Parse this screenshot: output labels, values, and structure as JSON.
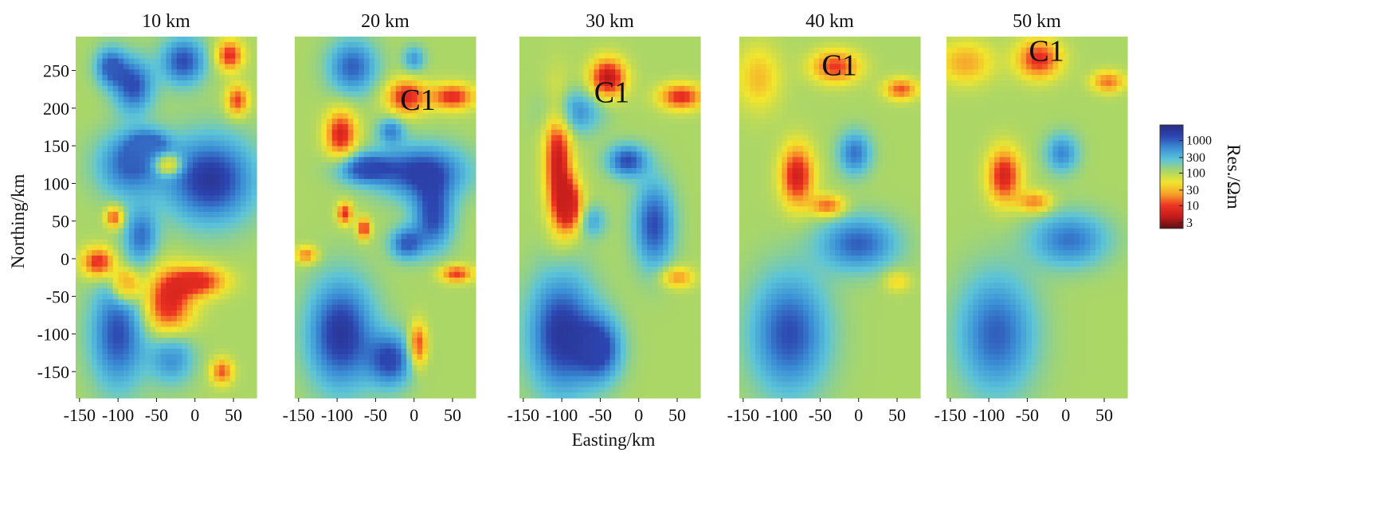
{
  "chart_data": {
    "type": "heatmap",
    "panels": [
      {
        "title": "10 km",
        "annotation": ""
      },
      {
        "title": "20 km",
        "annotation": "C1",
        "annotation_x": 5,
        "annotation_y": 207
      },
      {
        "title": "30 km",
        "annotation": "C1",
        "annotation_x": -35,
        "annotation_y": 217
      },
      {
        "title": "40 km",
        "annotation": "C1",
        "annotation_x": -25,
        "annotation_y": 253
      },
      {
        "title": "50 km",
        "annotation": "C1",
        "annotation_x": -25,
        "annotation_y": 272
      }
    ],
    "x_ticks": [
      "-150",
      "-100",
      "-50",
      "0",
      "50"
    ],
    "x_tick_values": [
      -150,
      -100,
      -50,
      0,
      50
    ],
    "y_ticks": [
      "250",
      "200",
      "150",
      "100",
      "50",
      "0",
      "-50",
      "-100",
      "-150"
    ],
    "y_tick_values": [
      250,
      200,
      150,
      100,
      50,
      0,
      -50,
      -100,
      -150
    ],
    "xlabel": "Easting/km",
    "ylabel": "Northing/km",
    "xlim": [
      -155,
      80
    ],
    "ylim": [
      -185,
      295
    ],
    "colorbar": {
      "label": "Res./Ωm",
      "ticks": [
        "1000",
        "300",
        "100",
        "30",
        "10",
        "3"
      ],
      "tick_values": [
        1000,
        300,
        100,
        30,
        10,
        3
      ],
      "range": [
        2,
        3000
      ],
      "scale": "log",
      "colors": [
        "#5a0f12",
        "#c21b1b",
        "#ee3322",
        "#f7a22a",
        "#f2e52d",
        "#a8d66a",
        "#5cc4d8",
        "#3b8fd6",
        "#2c45b0",
        "#2a2b84"
      ]
    },
    "features": [
      [
        {
          "x": -15,
          "y": 262,
          "sx": 20,
          "sy": 22,
          "v": 3.1
        },
        {
          "x": -80,
          "y": 230,
          "sx": 18,
          "sy": 25,
          "v": 3.1
        },
        {
          "x": -110,
          "y": 255,
          "sx": 14,
          "sy": 18,
          "v": 3.0
        },
        {
          "x": 45,
          "y": 270,
          "sx": 12,
          "sy": 14,
          "v": 0.9
        },
        {
          "x": 55,
          "y": 210,
          "sx": 10,
          "sy": 14,
          "v": 1.0
        },
        {
          "x": -85,
          "y": 125,
          "sx": 30,
          "sy": 30,
          "v": 3.0
        },
        {
          "x": -35,
          "y": 125,
          "sx": 12,
          "sy": 10,
          "v": 0.9
        },
        {
          "x": 20,
          "y": 105,
          "sx": 40,
          "sy": 40,
          "v": 3.3
        },
        {
          "x": -105,
          "y": 55,
          "sx": 8,
          "sy": 10,
          "v": 1.0
        },
        {
          "x": -70,
          "y": 30,
          "sx": 15,
          "sy": 25,
          "v": 2.9
        },
        {
          "x": -125,
          "y": -5,
          "sx": 15,
          "sy": 14,
          "v": 0.8
        },
        {
          "x": -90,
          "y": -35,
          "sx": 12,
          "sy": 15,
          "v": 0.9
        },
        {
          "x": -35,
          "y": -60,
          "sx": 22,
          "sy": 30,
          "v": 0.8
        },
        {
          "x": 5,
          "y": -30,
          "sx": 25,
          "sy": 14,
          "v": 0.9
        },
        {
          "x": -100,
          "y": -100,
          "sx": 25,
          "sy": 50,
          "v": 3.1
        },
        {
          "x": -30,
          "y": -130,
          "sx": 20,
          "sy": 25,
          "v": 2.8
        },
        {
          "x": 35,
          "y": -150,
          "sx": 10,
          "sy": 12,
          "v": 1.1
        },
        {
          "x": -60,
          "y": 150,
          "sx": 18,
          "sy": 14,
          "v": 2.9
        }
      ],
      [
        {
          "x": -95,
          "y": 165,
          "sx": 14,
          "sy": 22,
          "v": 0.8
        },
        {
          "x": -10,
          "y": 215,
          "sx": 18,
          "sy": 16,
          "v": 0.85
        },
        {
          "x": 50,
          "y": 215,
          "sx": 20,
          "sy": 12,
          "v": 0.9
        },
        {
          "x": -80,
          "y": 255,
          "sx": 22,
          "sy": 25,
          "v": 3.0
        },
        {
          "x": -30,
          "y": 170,
          "sx": 12,
          "sy": 12,
          "v": 2.8
        },
        {
          "x": 10,
          "y": 115,
          "sx": 40,
          "sy": 25,
          "v": 3.2
        },
        {
          "x": -65,
          "y": 120,
          "sx": 25,
          "sy": 14,
          "v": 3.1
        },
        {
          "x": 25,
          "y": 55,
          "sx": 18,
          "sy": 30,
          "v": 3.1
        },
        {
          "x": -90,
          "y": 60,
          "sx": 7,
          "sy": 10,
          "v": 0.9
        },
        {
          "x": -65,
          "y": 40,
          "sx": 6,
          "sy": 10,
          "v": 0.9
        },
        {
          "x": -10,
          "y": 20,
          "sx": 15,
          "sy": 15,
          "v": 3.0
        },
        {
          "x": -140,
          "y": 5,
          "sx": 10,
          "sy": 8,
          "v": 1.2
        },
        {
          "x": 55,
          "y": -20,
          "sx": 15,
          "sy": 8,
          "v": 1.0
        },
        {
          "x": -95,
          "y": -100,
          "sx": 30,
          "sy": 50,
          "v": 3.3
        },
        {
          "x": -30,
          "y": -135,
          "sx": 20,
          "sy": 25,
          "v": 3.1
        },
        {
          "x": 5,
          "y": -115,
          "sx": 8,
          "sy": 20,
          "v": 0.9
        },
        {
          "x": 0,
          "y": 265,
          "sx": 10,
          "sy": 12,
          "v": 2.7
        }
      ],
      [
        {
          "x": -105,
          "y": 130,
          "sx": 12,
          "sy": 55,
          "v": 0.7
        },
        {
          "x": -90,
          "y": 70,
          "sx": 12,
          "sy": 25,
          "v": 0.7
        },
        {
          "x": -40,
          "y": 240,
          "sx": 16,
          "sy": 18,
          "v": 0.6
        },
        {
          "x": 55,
          "y": 215,
          "sx": 20,
          "sy": 12,
          "v": 0.9
        },
        {
          "x": -15,
          "y": 130,
          "sx": 18,
          "sy": 15,
          "v": 3.1
        },
        {
          "x": 20,
          "y": 45,
          "sx": 18,
          "sy": 40,
          "v": 3.1
        },
        {
          "x": -85,
          "y": 195,
          "sx": 25,
          "sy": 20,
          "v": 2.8
        },
        {
          "x": -100,
          "y": -100,
          "sx": 30,
          "sy": 55,
          "v": 3.3
        },
        {
          "x": -50,
          "y": -120,
          "sx": 20,
          "sy": 30,
          "v": 3.1
        },
        {
          "x": -60,
          "y": 50,
          "sx": 12,
          "sy": 15,
          "v": 2.6
        },
        {
          "x": 50,
          "y": -25,
          "sx": 15,
          "sy": 10,
          "v": 1.3
        }
      ],
      [
        {
          "x": -80,
          "y": 110,
          "sx": 15,
          "sy": 28,
          "v": 0.75
        },
        {
          "x": -40,
          "y": 70,
          "sx": 15,
          "sy": 10,
          "v": 1.1
        },
        {
          "x": -30,
          "y": 255,
          "sx": 22,
          "sy": 15,
          "v": 1.0
        },
        {
          "x": 55,
          "y": 225,
          "sx": 15,
          "sy": 10,
          "v": 1.1
        },
        {
          "x": -5,
          "y": 140,
          "sx": 15,
          "sy": 20,
          "v": 2.9
        },
        {
          "x": 0,
          "y": 20,
          "sx": 35,
          "sy": 25,
          "v": 3.0
        },
        {
          "x": -90,
          "y": -100,
          "sx": 35,
          "sy": 55,
          "v": 3.1
        },
        {
          "x": 50,
          "y": -30,
          "sx": 12,
          "sy": 10,
          "v": 1.6
        },
        {
          "x": -130,
          "y": 240,
          "sx": 20,
          "sy": 30,
          "v": 1.5
        }
      ],
      [
        {
          "x": -80,
          "y": 110,
          "sx": 15,
          "sy": 25,
          "v": 0.8
        },
        {
          "x": -40,
          "y": 75,
          "sx": 15,
          "sy": 10,
          "v": 1.2
        },
        {
          "x": -35,
          "y": 265,
          "sx": 20,
          "sy": 18,
          "v": 0.9
        },
        {
          "x": 55,
          "y": 235,
          "sx": 15,
          "sy": 10,
          "v": 1.2
        },
        {
          "x": -5,
          "y": 140,
          "sx": 15,
          "sy": 18,
          "v": 2.8
        },
        {
          "x": 5,
          "y": 25,
          "sx": 35,
          "sy": 25,
          "v": 2.9
        },
        {
          "x": -90,
          "y": -100,
          "sx": 35,
          "sy": 55,
          "v": 3.0
        },
        {
          "x": -130,
          "y": 260,
          "sx": 25,
          "sy": 20,
          "v": 1.4
        }
      ]
    ]
  }
}
